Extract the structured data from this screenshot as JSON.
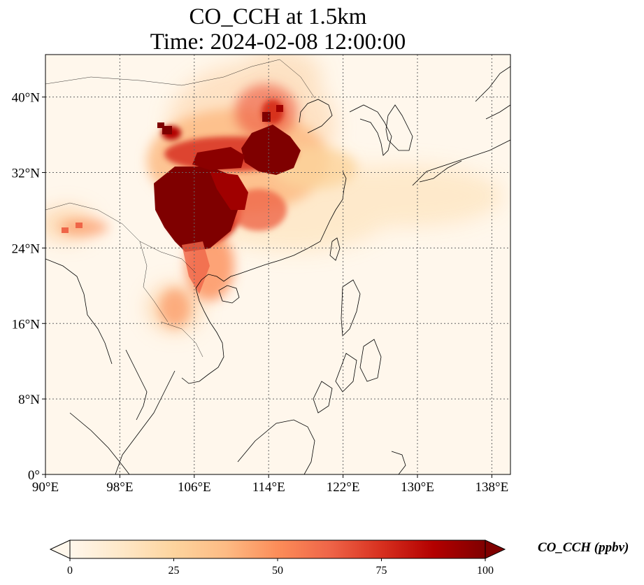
{
  "title": {
    "line1": "CO_CCH at 1.5km",
    "line2": "Time: 2024-02-08 12:00:00"
  },
  "map": {
    "lon_range": [
      90,
      140
    ],
    "lat_range": [
      0,
      44.5
    ],
    "gridlines": "dotted",
    "coastlines": true,
    "borders": true
  },
  "axes": {
    "x_ticks": [
      {
        "value": 90,
        "label": "90°E"
      },
      {
        "value": 98,
        "label": "98°E"
      },
      {
        "value": 106,
        "label": "106°E"
      },
      {
        "value": 114,
        "label": "114°E"
      },
      {
        "value": 122,
        "label": "122°E"
      },
      {
        "value": 130,
        "label": "130°E"
      },
      {
        "value": 138,
        "label": "138°E"
      }
    ],
    "y_ticks": [
      {
        "value": 0,
        "label": "0°"
      },
      {
        "value": 8,
        "label": "8°N"
      },
      {
        "value": 16,
        "label": "16°N"
      },
      {
        "value": 24,
        "label": "24°N"
      },
      {
        "value": 32,
        "label": "32°N"
      },
      {
        "value": 40,
        "label": "40°N"
      }
    ]
  },
  "colorbar": {
    "label": "CO_CCH (ppbv)",
    "colormap": "OrRd",
    "range": [
      0,
      100
    ],
    "extend": "both",
    "ticks": [
      {
        "value": 0,
        "label": "0"
      },
      {
        "value": 25,
        "label": "25"
      },
      {
        "value": 50,
        "label": "50"
      },
      {
        "value": 75,
        "label": "75"
      },
      {
        "value": 100,
        "label": "100"
      }
    ],
    "colors": [
      "#fff7ec",
      "#fee8c8",
      "#fdd49e",
      "#fdbb84",
      "#fc8d59",
      "#ef6548",
      "#d7301f",
      "#b30000",
      "#7f0000"
    ]
  }
}
